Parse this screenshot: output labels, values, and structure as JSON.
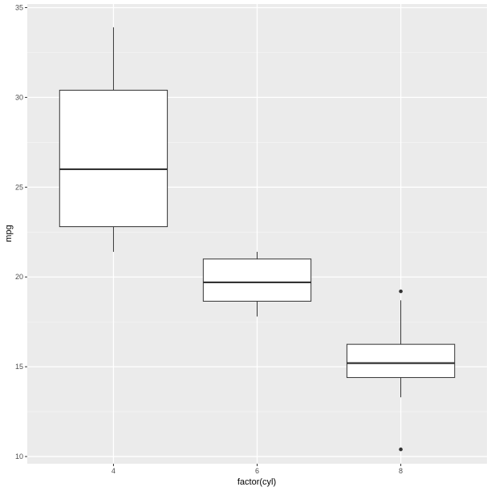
{
  "chart_data": {
    "type": "boxplot",
    "title": "",
    "xlabel": "factor(cyl)",
    "ylabel": "mpg",
    "categories": [
      "4",
      "6",
      "8"
    ],
    "boxes": [
      {
        "category": "4",
        "whisker_low": 21.4,
        "q1": 22.8,
        "median": 26.0,
        "q3": 30.4,
        "whisker_high": 33.9,
        "outliers": []
      },
      {
        "category": "6",
        "whisker_low": 17.8,
        "q1": 18.65,
        "median": 19.7,
        "q3": 21.0,
        "whisker_high": 21.4,
        "outliers": []
      },
      {
        "category": "8",
        "whisker_low": 13.3,
        "q1": 14.4,
        "median": 15.2,
        "q3": 16.25,
        "whisker_high": 18.7,
        "outliers": [
          10.4,
          19.2
        ]
      }
    ],
    "yticks": [
      10,
      15,
      20,
      25,
      30,
      35
    ],
    "ylim": [
      9.6,
      35.2
    ],
    "grid": true,
    "colors": {
      "panel": "#ebebeb",
      "grid_major": "#ffffff",
      "grid_minor": "#f5f5f5",
      "box_fill": "#ffffff",
      "box_stroke": "#333333",
      "tick_text": "#4d4d4d",
      "tick_mark": "#333333"
    }
  }
}
